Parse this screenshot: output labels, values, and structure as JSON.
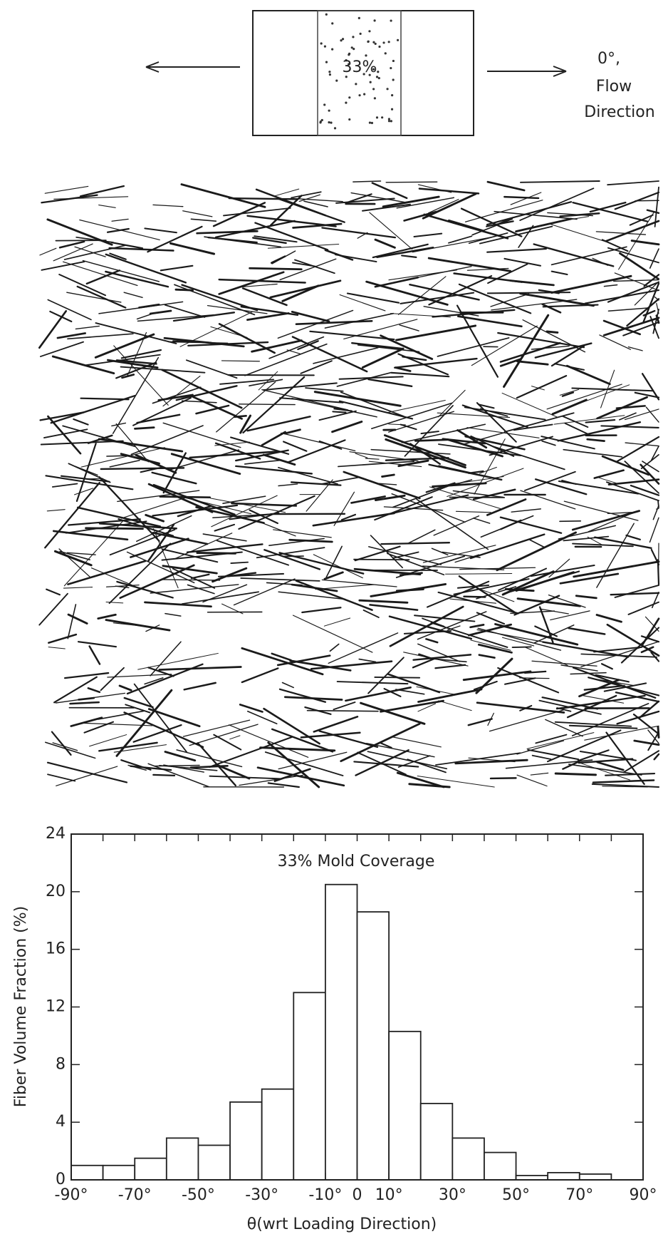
{
  "diagram": {
    "label": "33%",
    "direction_label": [
      "0°,",
      "Flow",
      "Direction"
    ]
  },
  "chart_data": {
    "type": "histogram",
    "title": "33% Mold Coverage",
    "y_label": "Fiber Volume Fraction (%)",
    "x_label": "θ(wrt Loading Direction)",
    "bins": [
      -90,
      -80,
      -70,
      -60,
      -50,
      -40,
      -30,
      -20,
      -10,
      0,
      10,
      20,
      30,
      40,
      50,
      60,
      70,
      80,
      90
    ],
    "values": [
      1.0,
      1.0,
      1.5,
      2.9,
      2.4,
      5.4,
      6.3,
      13.0,
      20.5,
      18.6,
      10.3,
      5.3,
      2.9,
      1.9,
      0.3,
      0.5,
      0.4,
      0.0
    ],
    "color": "#ffffff",
    "xlim": [
      -90,
      90
    ],
    "ylim": [
      0,
      24
    ],
    "xticks": [
      {
        "value": -90,
        "label": "-90°"
      },
      {
        "value": -70,
        "label": "-70°"
      },
      {
        "value": -50,
        "label": "-50°"
      },
      {
        "value": -30,
        "label": "-30°"
      },
      {
        "value": -10,
        "label": "-10°"
      },
      0,
      {
        "value": 10,
        "label": "10°"
      },
      {
        "value": 30,
        "label": "30°"
      },
      {
        "value": 50,
        "label": "50°"
      },
      {
        "value": 70,
        "label": "70°"
      },
      {
        "value": 90,
        "label": "90°"
      }
    ],
    "yticks": [
      0,
      4,
      8,
      12,
      16,
      20,
      24
    ],
    "grid": false
  }
}
